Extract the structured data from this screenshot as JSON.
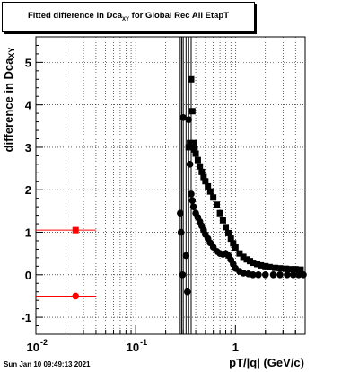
{
  "title": {
    "main": "Fitted difference in Dca",
    "sub": "XY",
    "rest": " for Global Rec All EtapT"
  },
  "ylabel": {
    "main": "difference in Dca",
    "sub": "XY"
  },
  "xlabel": "pT/|q| (GeV/c)",
  "timestamp": "Sun Jan 10 09:49:13 2021",
  "colors": {
    "red_series": "#ff0000",
    "black_series": "#000000",
    "grid": "#000000"
  },
  "chart_data": {
    "type": "scatter",
    "x_scale": "log",
    "xlim": [
      0.01,
      5.0
    ],
    "ylim": [
      -1.4,
      5.6
    ],
    "grid": true,
    "x_ticks": [
      {
        "value": 0.01,
        "base": "10",
        "exp": "-2"
      },
      {
        "value": 0.1,
        "base": "10",
        "exp": "-1"
      },
      {
        "value": 1,
        "label": "1"
      }
    ],
    "y_ticks": [
      -1,
      0,
      1,
      2,
      3,
      4,
      5
    ],
    "series": [
      {
        "marker": "square",
        "color": "#ff0000",
        "points": [
          {
            "x": 0.025,
            "y": 1.05,
            "xerr": [
              0.01,
              0.04
            ]
          }
        ]
      },
      {
        "marker": "circle",
        "color": "#ff0000",
        "points": [
          {
            "x": 0.025,
            "y": -0.5,
            "xerr": [
              0.01,
              0.04
            ]
          }
        ]
      },
      {
        "marker": "square",
        "color": "#000000",
        "points": [
          {
            "x": 0.34,
            "y": 3.0
          },
          {
            "x": 0.35,
            "y": 3.1
          },
          {
            "x": 0.36,
            "y": 4.6
          },
          {
            "x": 0.37,
            "y": 3.85
          },
          {
            "x": 0.38,
            "y": 3.1
          },
          {
            "x": 0.39,
            "y": 2.95
          },
          {
            "x": 0.4,
            "y": 2.85
          },
          {
            "x": 0.42,
            "y": 2.7
          },
          {
            "x": 0.44,
            "y": 2.55
          },
          {
            "x": 0.46,
            "y": 2.42
          },
          {
            "x": 0.48,
            "y": 2.3
          },
          {
            "x": 0.5,
            "y": 2.2
          },
          {
            "x": 0.53,
            "y": 2.08
          },
          {
            "x": 0.56,
            "y": 1.96
          },
          {
            "x": 0.6,
            "y": 1.82
          },
          {
            "x": 0.65,
            "y": 1.65
          },
          {
            "x": 0.7,
            "y": 1.45
          },
          {
            "x": 0.75,
            "y": 1.28
          },
          {
            "x": 0.8,
            "y": 1.12
          },
          {
            "x": 0.85,
            "y": 0.98
          },
          {
            "x": 0.9,
            "y": 0.85
          },
          {
            "x": 0.95,
            "y": 0.74
          },
          {
            "x": 1.0,
            "y": 0.64
          },
          {
            "x": 1.1,
            "y": 0.5
          },
          {
            "x": 1.2,
            "y": 0.42
          },
          {
            "x": 1.3,
            "y": 0.36
          },
          {
            "x": 1.4,
            "y": 0.32
          },
          {
            "x": 1.5,
            "y": 0.28
          },
          {
            "x": 1.65,
            "y": 0.25
          },
          {
            "x": 1.8,
            "y": 0.22
          },
          {
            "x": 2.0,
            "y": 0.2
          },
          {
            "x": 2.2,
            "y": 0.18
          },
          {
            "x": 2.5,
            "y": 0.16
          },
          {
            "x": 2.8,
            "y": 0.15
          },
          {
            "x": 3.2,
            "y": 0.14
          },
          {
            "x": 3.6,
            "y": 0.13
          },
          {
            "x": 4.0,
            "y": 0.13
          },
          {
            "x": 4.5,
            "y": 0.12
          }
        ]
      },
      {
        "marker": "circle",
        "color": "#000000",
        "points": [
          {
            "x": 0.28,
            "y": 1.45
          },
          {
            "x": 0.285,
            "y": 1.0
          },
          {
            "x": 0.295,
            "y": 0.0
          },
          {
            "x": 0.3,
            "y": 3.7
          },
          {
            "x": 0.32,
            "y": 0.45
          },
          {
            "x": 0.33,
            "y": -0.4
          },
          {
            "x": 0.34,
            "y": 3.65
          },
          {
            "x": 0.35,
            "y": 2.6
          },
          {
            "x": 0.36,
            "y": 1.9
          },
          {
            "x": 0.37,
            "y": 1.75
          },
          {
            "x": 0.38,
            "y": 1.6
          },
          {
            "x": 0.4,
            "y": 1.45
          },
          {
            "x": 0.42,
            "y": 1.35
          },
          {
            "x": 0.44,
            "y": 1.25
          },
          {
            "x": 0.46,
            "y": 1.15
          },
          {
            "x": 0.48,
            "y": 1.05
          },
          {
            "x": 0.5,
            "y": 0.95
          },
          {
            "x": 0.53,
            "y": 0.85
          },
          {
            "x": 0.56,
            "y": 0.75
          },
          {
            "x": 0.6,
            "y": 0.65
          },
          {
            "x": 0.65,
            "y": 0.55
          },
          {
            "x": 0.7,
            "y": 0.5
          },
          {
            "x": 0.75,
            "y": 0.48
          },
          {
            "x": 0.8,
            "y": 0.5
          },
          {
            "x": 0.85,
            "y": 0.45
          },
          {
            "x": 0.9,
            "y": 0.35
          },
          {
            "x": 0.95,
            "y": 0.25
          },
          {
            "x": 1.0,
            "y": 0.15
          },
          {
            "x": 1.1,
            "y": 0.08
          },
          {
            "x": 1.2,
            "y": 0.04
          },
          {
            "x": 1.35,
            "y": 0.02
          },
          {
            "x": 1.5,
            "y": 0.0
          },
          {
            "x": 1.7,
            "y": 0.0
          },
          {
            "x": 2.0,
            "y": 0.0
          },
          {
            "x": 2.4,
            "y": 0.0
          },
          {
            "x": 2.8,
            "y": 0.0
          },
          {
            "x": 3.3,
            "y": 0.0
          },
          {
            "x": 3.8,
            "y": 0.0
          },
          {
            "x": 4.3,
            "y": 0.0
          },
          {
            "x": 4.8,
            "y": 0.0
          }
        ]
      }
    ],
    "vertical_error_bars_x": [
      0.28,
      0.29,
      0.3,
      0.32,
      0.34,
      0.36
    ]
  }
}
